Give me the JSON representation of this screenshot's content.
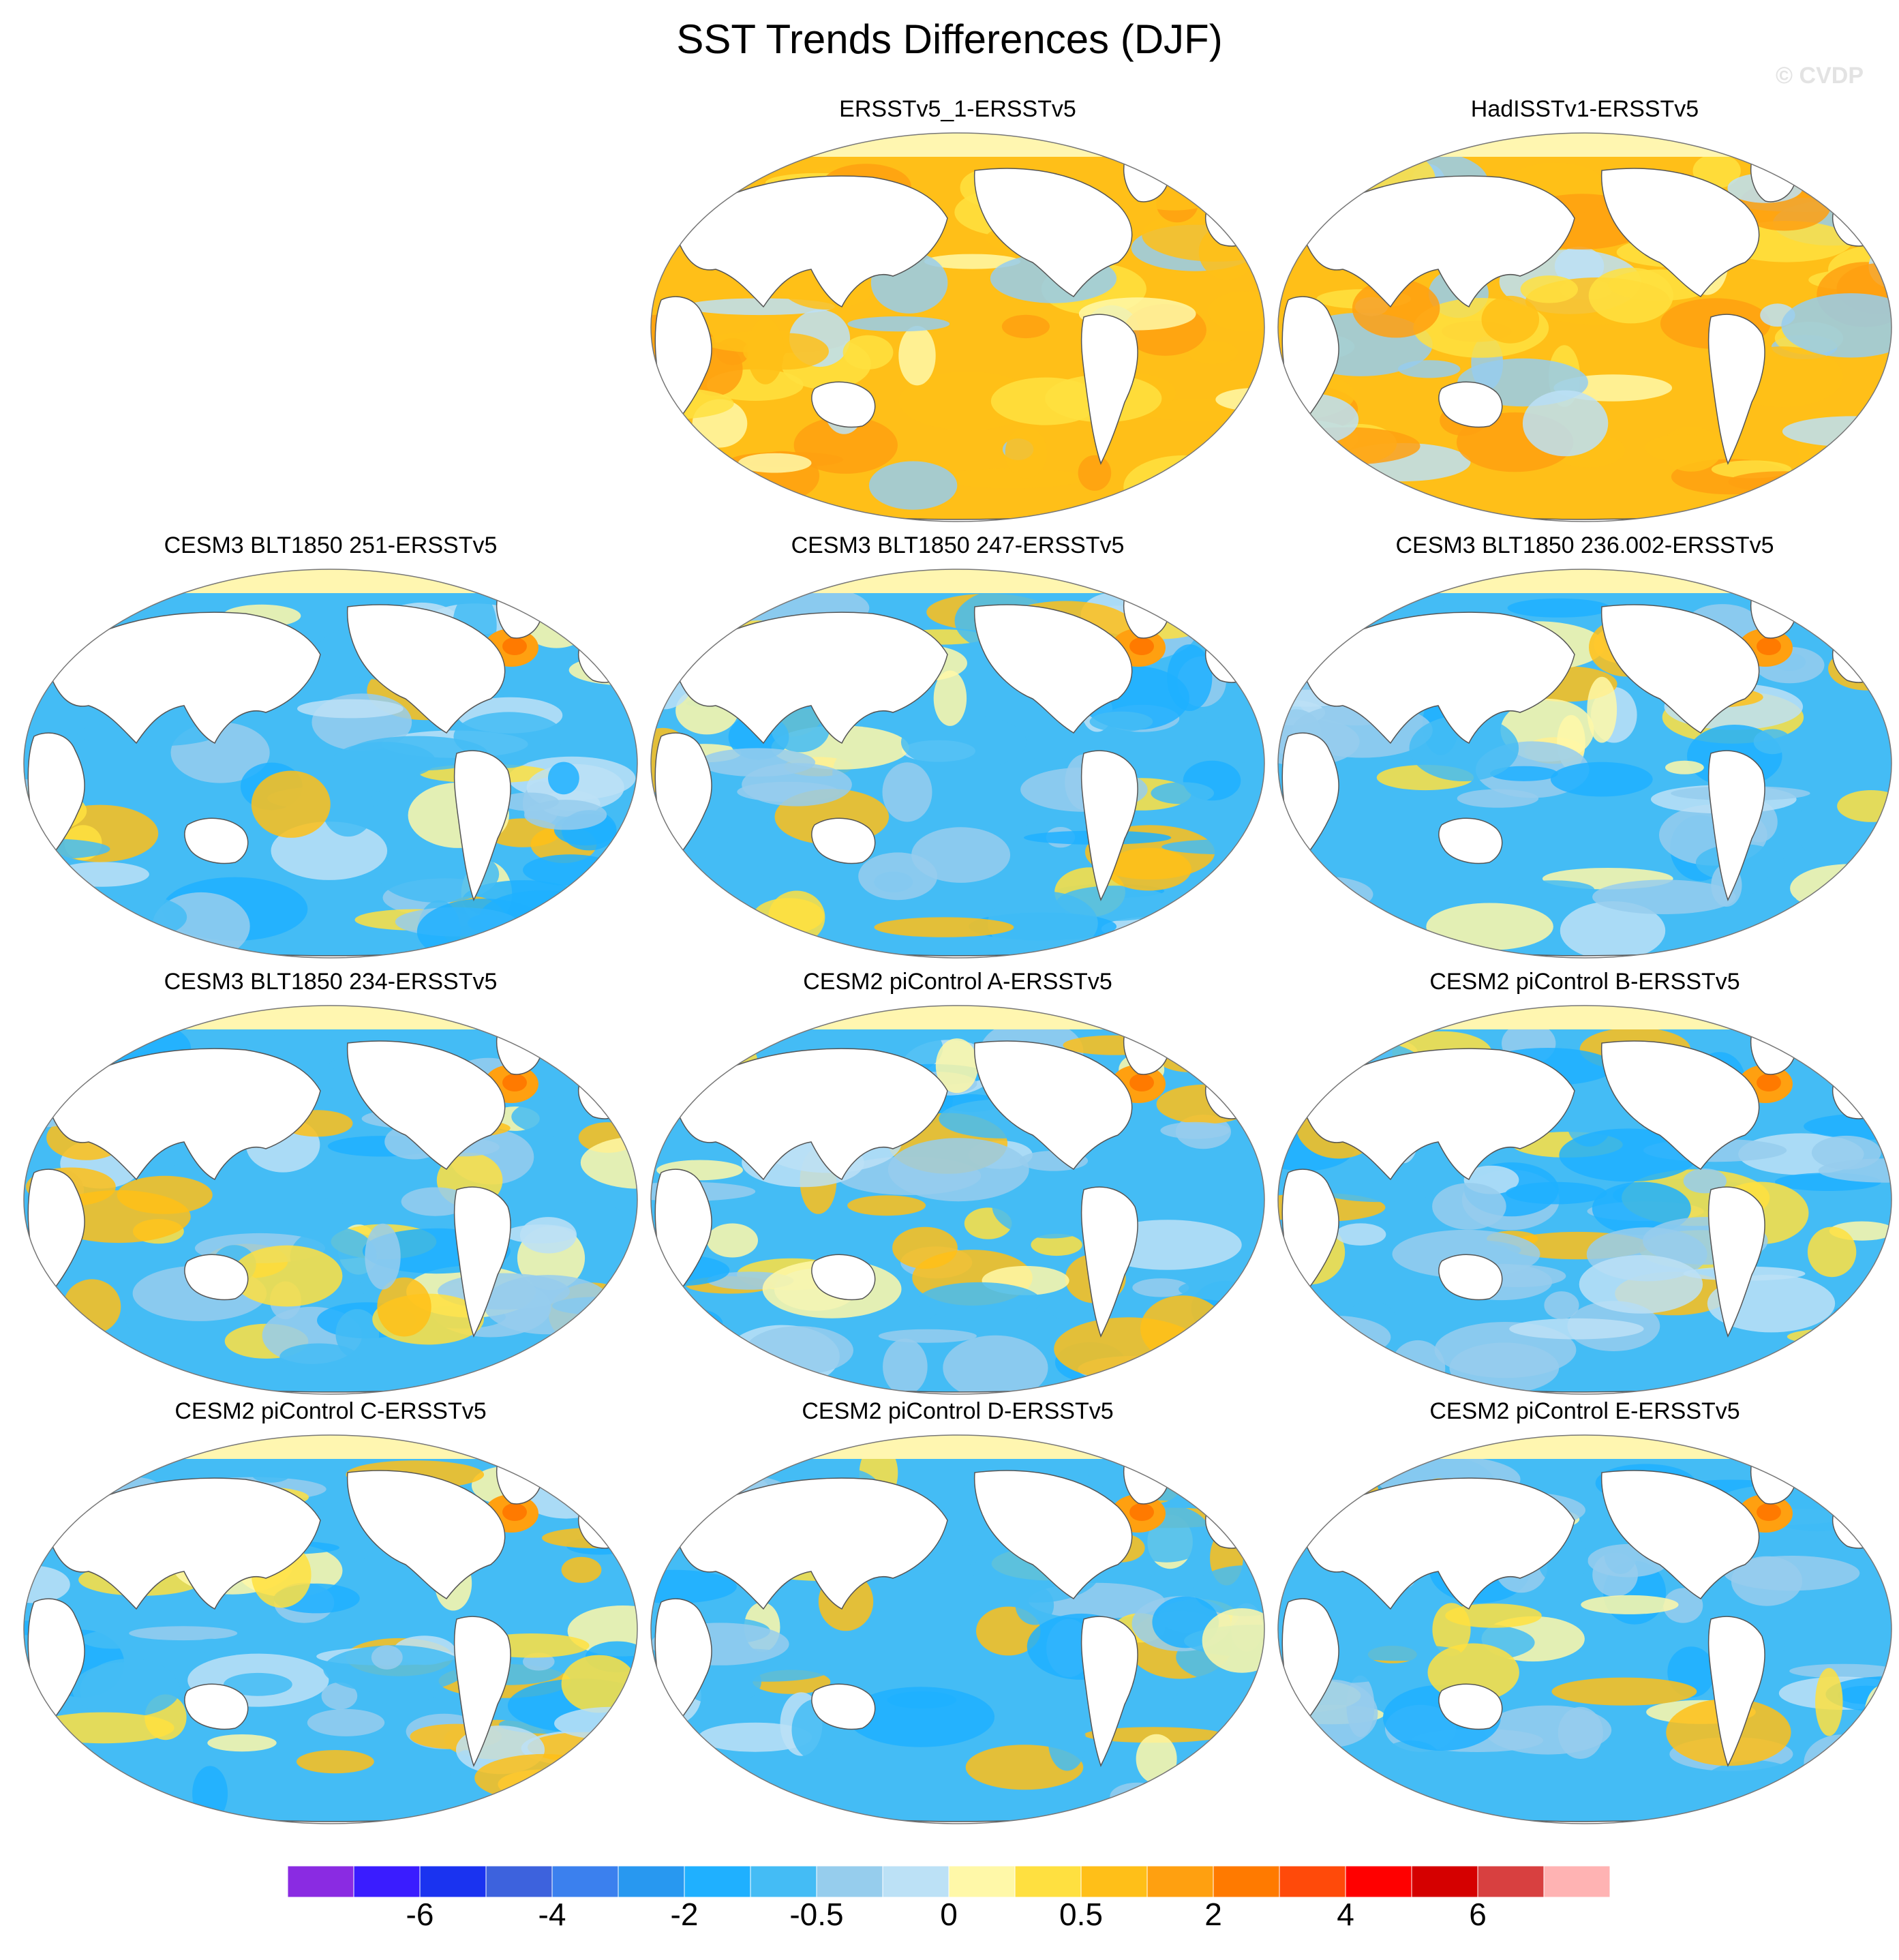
{
  "title": "SST Trends Differences (DJF)",
  "watermark": "© CVDP",
  "chart_data": {
    "type": "heatmap",
    "projection": "global map (Robinson-like)",
    "panels": [
      {
        "title": "ERSSTv5_1-ERSSTv5",
        "dominant_sign": "positive"
      },
      {
        "title": "HadISSTv1-ERSSTv5",
        "dominant_sign": "positive"
      },
      {
        "title": "CESM3 BLT1850 251-ERSSTv5",
        "dominant_sign": "negative"
      },
      {
        "title": "CESM3 BLT1850 247-ERSSTv5",
        "dominant_sign": "negative"
      },
      {
        "title": "CESM3 BLT1850 236.002-ERSSTv5",
        "dominant_sign": "negative"
      },
      {
        "title": "CESM3 BLT1850 234-ERSSTv5",
        "dominant_sign": "negative"
      },
      {
        "title": "CESM2 piControl A-ERSSTv5",
        "dominant_sign": "negative"
      },
      {
        "title": "CESM2 piControl B-ERSSTv5",
        "dominant_sign": "negative"
      },
      {
        "title": "CESM2 piControl C-ERSSTv5",
        "dominant_sign": "negative"
      },
      {
        "title": "CESM2 piControl D-ERSSTv5",
        "dominant_sign": "negative"
      },
      {
        "title": "CESM2 piControl E-ERSSTv5",
        "dominant_sign": "negative"
      }
    ],
    "colorbar": {
      "colors": [
        "#8a2be2",
        "#3a1cff",
        "#1a33f0",
        "#3d62dd",
        "#3b80ee",
        "#2898f0",
        "#1fb0ff",
        "#44bcf5",
        "#96cded",
        "#bce1f6",
        "#fff8a8",
        "#ffe040",
        "#ffbf18",
        "#ffa010",
        "#ff7a00",
        "#ff4a0a",
        "#ff0000",
        "#d50000",
        "#d84040",
        "#ffb3b3"
      ],
      "tick_labels": [
        "-6",
        "-4",
        "-2",
        "-0.5",
        "0",
        "0.5",
        "2",
        "4",
        "6"
      ]
    }
  }
}
